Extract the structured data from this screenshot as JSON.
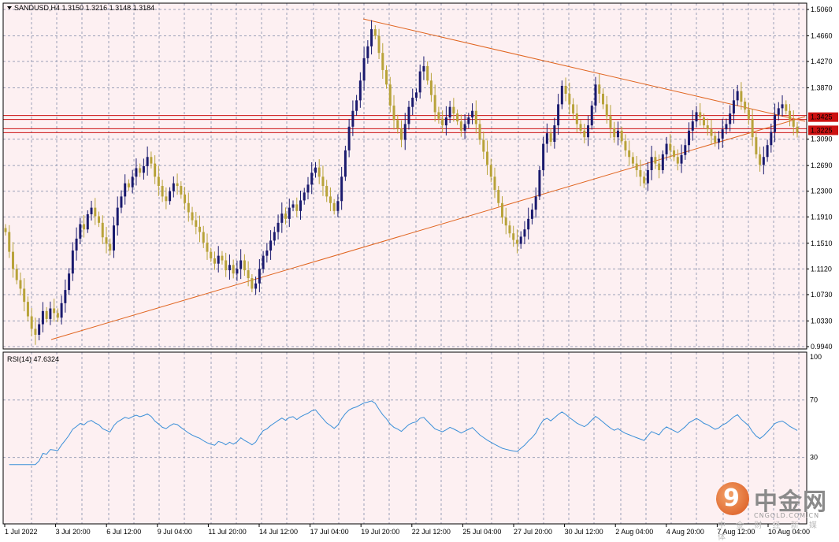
{
  "header": {
    "symbol_info": "SANDUSD,H4  1.3150 1.3216 1.3148 1.3184"
  },
  "rsi": {
    "title": "RSI(14) 47.6324",
    "levels": [
      "100",
      "70",
      "30"
    ]
  },
  "price_axis": {
    "labels": [
      "1.5060",
      "1.4660",
      "1.4270",
      "1.3870",
      "1.3425",
      "1.3225",
      "1.3090",
      "1.2690",
      "1.2300",
      "1.1910",
      "1.1510",
      "1.1120",
      "1.0730",
      "1.0330",
      "0.9940"
    ],
    "highlight_upper": "1.3425",
    "highlight_lower": "1.3225"
  },
  "time_axis": {
    "labels": [
      "1 Jul 2022",
      "3 Jul 20:00",
      "6 Jul 12:00",
      "9 Jul 04:00",
      "11 Jul 20:00",
      "14 Jul 12:00",
      "17 Jul 04:00",
      "19 Jul 20:00",
      "22 Jul 12:00",
      "25 Jul 04:00",
      "27 Jul 20:00",
      "30 Jul 12:00",
      "2 Aug 04:00",
      "4 Aug 20:00",
      "7 Aug 12:00",
      "10 Aug 04:00"
    ]
  },
  "colors": {
    "bg": "#fdf0f2",
    "grid": "#9aa0b8",
    "bull": "#1a1a6e",
    "bear": "#b8a33a",
    "trend": "#e0641e",
    "hline": "#cc1111",
    "rsi_line": "#3a8fd8",
    "marker_bg": "#cc1111"
  },
  "watermark": {
    "logo_glyph": "9",
    "name": "中金网",
    "site": "CNGOLD.COM.CN",
    "sub": "中 金 财 经 新 媒 体"
  },
  "chart_data": {
    "type": "candlestick",
    "symbol": "SANDUSD",
    "timeframe": "H4",
    "ohlc_last": {
      "open": 1.315,
      "high": 1.3216,
      "low": 1.3148,
      "close": 1.3184
    },
    "y_range": [
      0.994,
      1.506
    ],
    "horizontal_lines": [
      1.3425,
      1.3225
    ],
    "closes": [
      1.168,
      1.138,
      1.112,
      1.095,
      1.082,
      1.062,
      1.04,
      1.021,
      1.012,
      1.028,
      1.048,
      1.036,
      1.052,
      1.045,
      1.038,
      1.06,
      1.08,
      1.105,
      1.14,
      1.158,
      1.18,
      1.172,
      1.195,
      1.205,
      1.192,
      1.182,
      1.16,
      1.15,
      1.14,
      1.178,
      1.205,
      1.222,
      1.242,
      1.236,
      1.252,
      1.265,
      1.258,
      1.268,
      1.282,
      1.272,
      1.252,
      1.238,
      1.222,
      1.215,
      1.23,
      1.242,
      1.238,
      1.225,
      1.212,
      1.198,
      1.186,
      1.176,
      1.168,
      1.152,
      1.138,
      1.128,
      1.12,
      1.132,
      1.125,
      1.11,
      1.118,
      1.105,
      1.112,
      1.125,
      1.11,
      1.098,
      1.082,
      1.09,
      1.112,
      1.132,
      1.14,
      1.155,
      1.168,
      1.182,
      1.196,
      1.188,
      1.205,
      1.21,
      1.2,
      1.216,
      1.228,
      1.24,
      1.258,
      1.266,
      1.252,
      1.238,
      1.222,
      1.212,
      1.2,
      1.215,
      1.252,
      1.292,
      1.328,
      1.352,
      1.368,
      1.398,
      1.432,
      1.45,
      1.476,
      1.466,
      1.44,
      1.414,
      1.392,
      1.36,
      1.338,
      1.325,
      1.308,
      1.332,
      1.358,
      1.372,
      1.38,
      1.412,
      1.42,
      1.398,
      1.376,
      1.35,
      1.34,
      1.33,
      1.342,
      1.358,
      1.348,
      1.336,
      1.322,
      1.332,
      1.342,
      1.352,
      1.332,
      1.308,
      1.29,
      1.27,
      1.252,
      1.232,
      1.212,
      1.19,
      1.178,
      1.166,
      1.156,
      1.15,
      1.161,
      1.172,
      1.188,
      1.202,
      1.222,
      1.262,
      1.302,
      1.318,
      1.305,
      1.33,
      1.362,
      1.39,
      1.378,
      1.362,
      1.348,
      1.332,
      1.322,
      1.312,
      1.33,
      1.36,
      1.392,
      1.378,
      1.362,
      1.344,
      1.326,
      1.312,
      1.322,
      1.306,
      1.292,
      1.282,
      1.272,
      1.262,
      1.252,
      1.242,
      1.262,
      1.282,
      1.272,
      1.262,
      1.286,
      1.302,
      1.292,
      1.282,
      1.272,
      1.285,
      1.3,
      1.322,
      1.336,
      1.35,
      1.342,
      1.33,
      1.324,
      1.314,
      1.304,
      1.31,
      1.324,
      1.332,
      1.348,
      1.368,
      1.382,
      1.366,
      1.354,
      1.34,
      1.312,
      1.286,
      1.27,
      1.282,
      1.3,
      1.32,
      1.346,
      1.356,
      1.362,
      1.352,
      1.338,
      1.328,
      1.318
    ]
  }
}
